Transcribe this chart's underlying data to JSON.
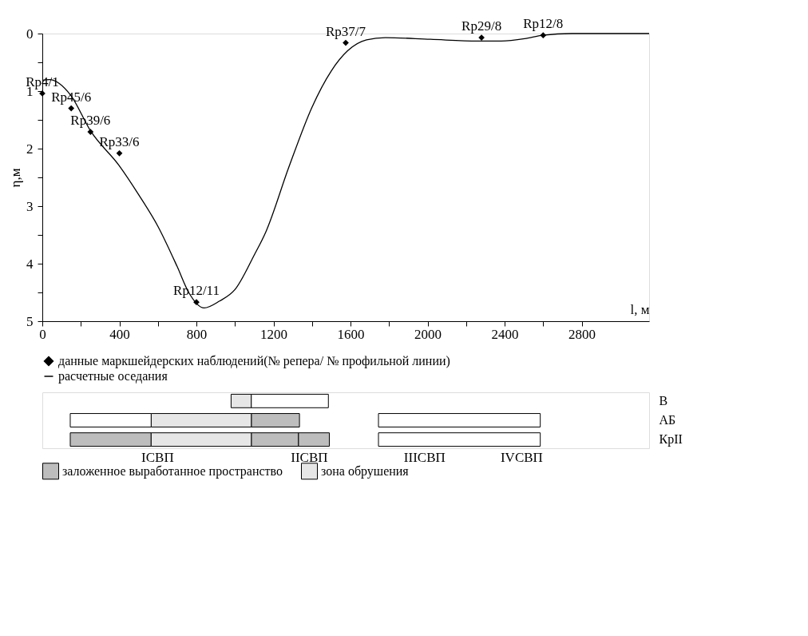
{
  "chart_data": [
    {
      "type": "line",
      "ylabel": "η,м",
      "xlabel": "l, м",
      "xlim": [
        0,
        3150
      ],
      "ylim": [
        5,
        0
      ],
      "xticks": [
        0,
        {
          "value": 200,
          "label": null
        },
        400,
        {
          "value": 600,
          "label": null
        },
        800,
        {
          "value": 1000,
          "label": null
        },
        1200,
        {
          "value": 1400,
          "label": null
        },
        1600,
        {
          "value": 1800,
          "label": null
        },
        2000,
        {
          "value": 2200,
          "label": null
        },
        2400,
        {
          "value": 2600,
          "label": null
        },
        2800
      ],
      "yticks": [
        0,
        {
          "value": 0.5,
          "label": null
        },
        1,
        {
          "value": 1.5,
          "label": null
        },
        2,
        {
          "value": 2.5,
          "label": null
        },
        3,
        {
          "value": 3.5,
          "label": null
        },
        4,
        {
          "value": 4.5,
          "label": null
        },
        5
      ],
      "grid": false,
      "legend": "bottom",
      "series": [
        {
          "name": "данные маркшейдерских наблюдений(№ репера/ № профильной линии)",
          "type": "scatter",
          "marker": "diamond",
          "color": "#000000",
          "x": [
            0,
            150,
            250,
            400,
            800,
            1575,
            2280,
            2600
          ],
          "values": [
            1.04,
            1.3,
            1.71,
            2.08,
            4.67,
            0.16,
            0.07,
            0.03
          ]
        },
        {
          "name": "расчетные оседания",
          "type": "line",
          "marker": "none",
          "line_style": "solid",
          "color": "#000000",
          "x": [
            0,
            37,
            147,
            250,
            400,
            500,
            600,
            700,
            760,
            840,
            920,
            1000,
            1100,
            1160,
            1280,
            1400,
            1500,
            1585,
            1683,
            1781,
            2015,
            2260,
            2382,
            2504,
            2598,
            2750,
            3150
          ],
          "values": [
            0.81,
            0.8,
            1.07,
            1.69,
            2.3,
            2.8,
            3.35,
            4.05,
            4.5,
            4.77,
            4.65,
            4.45,
            3.85,
            3.45,
            2.32,
            1.28,
            0.65,
            0.3,
            0.11,
            0.07,
            0.1,
            0.13,
            0.13,
            0.09,
            0.03,
            0.0,
            0.0
          ]
        }
      ],
      "annotations": [
        {
          "text": "Rp4/1",
          "x": 0,
          "y": 1.04
        },
        {
          "text": "Rp45/6",
          "x": 150,
          "y": 1.3
        },
        {
          "text": "Rp39/6",
          "x": 250,
          "y": 1.71
        },
        {
          "text": "Rp33/6",
          "x": 400,
          "y": 2.08
        },
        {
          "text": "Rp12/11",
          "x": 800,
          "y": 4.67
        },
        {
          "text": "Rp37/7",
          "x": 1575,
          "y": 0.16
        },
        {
          "text": "Rp29/8",
          "x": 2280,
          "y": 0.07
        },
        {
          "text": "Rp12/8",
          "x": 2600,
          "y": 0.03
        }
      ]
    },
    {
      "type": "bar",
      "orientation": "horizontal",
      "categories": [
        "В",
        "АБ",
        "КрII"
      ],
      "xlim": [
        0,
        3150
      ],
      "tick_labels": "y",
      "legend": "bottom",
      "series": [
        {
          "name": "заложенное выработанное пространство",
          "color": "#bdbdbd",
          "base": [
            null,
            1085,
            145
          ],
          "values": [
            null,
            250,
            420
          ]
        },
        {
          "color": "#bdbdbd",
          "base": [
            null,
            null,
            1085
          ],
          "values": [
            null,
            null,
            245
          ]
        },
        {
          "color": "#bdbdbd",
          "base": [
            null,
            null,
            1330
          ],
          "values": [
            null,
            null,
            160
          ]
        },
        {
          "name": "зона обрушения",
          "color": "#e6e6e6",
          "base": [
            980,
            565,
            565
          ],
          "values": [
            105,
            520,
            520
          ]
        },
        {
          "color": "#ffffff",
          "base": [
            1085,
            145,
            1745
          ],
          "values": [
            400,
            420,
            840
          ]
        },
        {
          "color": "#ffffff",
          "base": [
            null,
            1745,
            null
          ],
          "values": [
            null,
            840,
            null
          ]
        }
      ],
      "annotations": [
        "IСВП",
        "IIСВП",
        "IIIСВП",
        "IVСВП"
      ]
    }
  ]
}
